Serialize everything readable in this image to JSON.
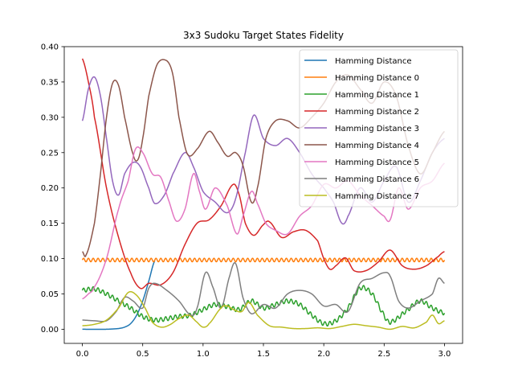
{
  "chart_data": {
    "type": "line",
    "title": "3x3 Sudoku Target States Fidelity",
    "xlabel": "",
    "ylabel": "",
    "xlim": [
      -0.15,
      3.15
    ],
    "ylim": [
      -0.02,
      0.4
    ],
    "xticks": [
      0.0,
      0.5,
      1.0,
      1.5,
      2.0,
      2.5,
      3.0
    ],
    "xtick_labels": [
      "0.0",
      "0.5",
      "1.0",
      "1.5",
      "2.0",
      "2.5",
      "3.0"
    ],
    "yticks": [
      0.0,
      0.05,
      0.1,
      0.15,
      0.2,
      0.25,
      0.3,
      0.35,
      0.4
    ],
    "ytick_labels": [
      "0.00",
      "0.05",
      "0.10",
      "0.15",
      "0.20",
      "0.25",
      "0.30",
      "0.35",
      "0.40"
    ],
    "grid": false,
    "legend_position": "top-right",
    "series": [
      {
        "name": "Hamming Distance",
        "color": "#1f77b4",
        "oscillation": null,
        "points": [
          [
            0.0,
            0.0
          ],
          [
            0.2,
            0.0
          ],
          [
            0.3,
            0.001
          ],
          [
            0.35,
            0.003
          ],
          [
            0.4,
            0.008
          ],
          [
            0.45,
            0.02
          ],
          [
            0.5,
            0.04
          ],
          [
            0.55,
            0.068
          ],
          [
            0.6,
            0.097
          ]
        ]
      },
      {
        "name": "Hamming Distance 0",
        "color": "#ff7f0e",
        "oscillation": {
          "amplitude": 0.0025,
          "period": 0.04
        },
        "points": [
          [
            0.0,
            0.098
          ],
          [
            1.5,
            0.098
          ],
          [
            3.0,
            0.098
          ]
        ]
      },
      {
        "name": "Hamming Distance 1",
        "color": "#2ca02c",
        "oscillation": {
          "amplitude": 0.003,
          "period": 0.04
        },
        "points": [
          [
            0.0,
            0.055
          ],
          [
            0.1,
            0.057
          ],
          [
            0.2,
            0.05
          ],
          [
            0.3,
            0.04
          ],
          [
            0.4,
            0.03
          ],
          [
            0.5,
            0.018
          ],
          [
            0.6,
            0.013
          ],
          [
            0.7,
            0.015
          ],
          [
            0.8,
            0.018
          ],
          [
            0.9,
            0.02
          ],
          [
            1.0,
            0.028
          ],
          [
            1.1,
            0.035
          ],
          [
            1.2,
            0.032
          ],
          [
            1.3,
            0.028
          ],
          [
            1.4,
            0.04
          ],
          [
            1.5,
            0.03
          ],
          [
            1.6,
            0.035
          ],
          [
            1.7,
            0.04
          ],
          [
            1.8,
            0.035
          ],
          [
            1.9,
            0.02
          ],
          [
            2.0,
            0.008
          ],
          [
            2.1,
            0.012
          ],
          [
            2.2,
            0.03
          ],
          [
            2.3,
            0.058
          ],
          [
            2.4,
            0.05
          ],
          [
            2.5,
            0.02
          ],
          [
            2.55,
            0.01
          ],
          [
            2.7,
            0.028
          ],
          [
            2.8,
            0.04
          ],
          [
            2.9,
            0.03
          ],
          [
            3.0,
            0.023
          ]
        ]
      },
      {
        "name": "Hamming Distance 2",
        "color": "#d62728",
        "oscillation": null,
        "points": [
          [
            0.0,
            0.383
          ],
          [
            0.05,
            0.35
          ],
          [
            0.1,
            0.3
          ],
          [
            0.2,
            0.2
          ],
          [
            0.3,
            0.13
          ],
          [
            0.4,
            0.08
          ],
          [
            0.48,
            0.058
          ],
          [
            0.55,
            0.065
          ],
          [
            0.65,
            0.063
          ],
          [
            0.75,
            0.08
          ],
          [
            0.85,
            0.12
          ],
          [
            0.95,
            0.15
          ],
          [
            1.05,
            0.155
          ],
          [
            1.15,
            0.175
          ],
          [
            1.25,
            0.205
          ],
          [
            1.3,
            0.19
          ],
          [
            1.35,
            0.15
          ],
          [
            1.42,
            0.133
          ],
          [
            1.5,
            0.148
          ],
          [
            1.55,
            0.152
          ],
          [
            1.65,
            0.13
          ],
          [
            1.75,
            0.138
          ],
          [
            1.85,
            0.14
          ],
          [
            1.95,
            0.125
          ],
          [
            2.0,
            0.1
          ],
          [
            2.05,
            0.085
          ],
          [
            2.1,
            0.09
          ],
          [
            2.18,
            0.101
          ],
          [
            2.25,
            0.083
          ],
          [
            2.35,
            0.083
          ],
          [
            2.45,
            0.095
          ],
          [
            2.55,
            0.112
          ],
          [
            2.65,
            0.09
          ],
          [
            2.75,
            0.085
          ],
          [
            2.85,
            0.09
          ],
          [
            2.95,
            0.103
          ],
          [
            3.0,
            0.11
          ]
        ]
      },
      {
        "name": "Hamming Distance 3",
        "color": "#9467bd",
        "oscillation": null,
        "points": [
          [
            0.0,
            0.295
          ],
          [
            0.05,
            0.34
          ],
          [
            0.1,
            0.357
          ],
          [
            0.15,
            0.33
          ],
          [
            0.2,
            0.27
          ],
          [
            0.25,
            0.21
          ],
          [
            0.3,
            0.19
          ],
          [
            0.35,
            0.22
          ],
          [
            0.42,
            0.236
          ],
          [
            0.48,
            0.23
          ],
          [
            0.55,
            0.2
          ],
          [
            0.6,
            0.178
          ],
          [
            0.68,
            0.19
          ],
          [
            0.75,
            0.22
          ],
          [
            0.85,
            0.25
          ],
          [
            0.92,
            0.23
          ],
          [
            1.0,
            0.195
          ],
          [
            1.1,
            0.18
          ],
          [
            1.2,
            0.165
          ],
          [
            1.27,
            0.185
          ],
          [
            1.35,
            0.25
          ],
          [
            1.42,
            0.303
          ],
          [
            1.5,
            0.27
          ],
          [
            1.6,
            0.26
          ],
          [
            1.7,
            0.27
          ],
          [
            1.8,
            0.25
          ],
          [
            1.9,
            0.22
          ],
          [
            2.0,
            0.2
          ],
          [
            2.08,
            0.18
          ],
          [
            2.15,
            0.15
          ],
          [
            2.2,
            0.16
          ],
          [
            2.3,
            0.2
          ],
          [
            2.4,
            0.18
          ],
          [
            2.5,
            0.21
          ],
          [
            2.6,
            0.23
          ],
          [
            2.7,
            0.18
          ],
          [
            2.8,
            0.21
          ],
          [
            2.9,
            0.25
          ],
          [
            3.0,
            0.27
          ]
        ]
      },
      {
        "name": "Hamming Distance 4",
        "color": "#8c564b",
        "oscillation": null,
        "points": [
          [
            0.0,
            0.11
          ],
          [
            0.03,
            0.105
          ],
          [
            0.1,
            0.15
          ],
          [
            0.15,
            0.22
          ],
          [
            0.2,
            0.3
          ],
          [
            0.25,
            0.348
          ],
          [
            0.3,
            0.345
          ],
          [
            0.35,
            0.3
          ],
          [
            0.42,
            0.248
          ],
          [
            0.46,
            0.24
          ],
          [
            0.5,
            0.27
          ],
          [
            0.55,
            0.33
          ],
          [
            0.62,
            0.375
          ],
          [
            0.7,
            0.38
          ],
          [
            0.75,
            0.36
          ],
          [
            0.8,
            0.3
          ],
          [
            0.87,
            0.248
          ],
          [
            0.95,
            0.255
          ],
          [
            1.05,
            0.28
          ],
          [
            1.12,
            0.265
          ],
          [
            1.2,
            0.245
          ],
          [
            1.27,
            0.25
          ],
          [
            1.33,
            0.232
          ],
          [
            1.4,
            0.18
          ],
          [
            1.45,
            0.2
          ],
          [
            1.52,
            0.27
          ],
          [
            1.6,
            0.295
          ],
          [
            1.7,
            0.295
          ],
          [
            1.8,
            0.285
          ],
          [
            1.9,
            0.3
          ],
          [
            2.0,
            0.32
          ],
          [
            2.1,
            0.35
          ],
          [
            2.2,
            0.36
          ],
          [
            2.3,
            0.34
          ],
          [
            2.4,
            0.32
          ],
          [
            2.5,
            0.35
          ],
          [
            2.6,
            0.33
          ],
          [
            2.7,
            0.26
          ],
          [
            2.8,
            0.22
          ],
          [
            2.9,
            0.25
          ],
          [
            3.0,
            0.28
          ]
        ]
      },
      {
        "name": "Hamming Distance 5",
        "color": "#e377c2",
        "oscillation": null,
        "points": [
          [
            0.0,
            0.043
          ],
          [
            0.05,
            0.05
          ],
          [
            0.1,
            0.06
          ],
          [
            0.2,
            0.1
          ],
          [
            0.3,
            0.17
          ],
          [
            0.38,
            0.21
          ],
          [
            0.44,
            0.255
          ],
          [
            0.5,
            0.25
          ],
          [
            0.58,
            0.22
          ],
          [
            0.65,
            0.215
          ],
          [
            0.72,
            0.18
          ],
          [
            0.78,
            0.153
          ],
          [
            0.85,
            0.17
          ],
          [
            0.92,
            0.22
          ],
          [
            0.97,
            0.195
          ],
          [
            1.02,
            0.17
          ],
          [
            1.1,
            0.2
          ],
          [
            1.2,
            0.175
          ],
          [
            1.28,
            0.135
          ],
          [
            1.33,
            0.16
          ],
          [
            1.4,
            0.195
          ],
          [
            1.45,
            0.178
          ],
          [
            1.52,
            0.15
          ],
          [
            1.6,
            0.14
          ],
          [
            1.7,
            0.135
          ],
          [
            1.8,
            0.16
          ],
          [
            1.9,
            0.175
          ],
          [
            2.0,
            0.205
          ],
          [
            2.1,
            0.2
          ],
          [
            2.2,
            0.21
          ],
          [
            2.3,
            0.19
          ],
          [
            2.4,
            0.175
          ],
          [
            2.5,
            0.16
          ],
          [
            2.55,
            0.155
          ],
          [
            2.62,
            0.2
          ],
          [
            2.7,
            0.17
          ],
          [
            2.8,
            0.2
          ],
          [
            2.9,
            0.21
          ],
          [
            3.0,
            0.235
          ]
        ]
      },
      {
        "name": "Hamming Distance 6",
        "color": "#7f7f7f",
        "oscillation": null,
        "points": [
          [
            0.0,
            0.013
          ],
          [
            0.1,
            0.012
          ],
          [
            0.2,
            0.012
          ],
          [
            0.28,
            0.025
          ],
          [
            0.35,
            0.045
          ],
          [
            0.42,
            0.04
          ],
          [
            0.5,
            0.03
          ],
          [
            0.55,
            0.058
          ],
          [
            0.6,
            0.065
          ],
          [
            0.7,
            0.055
          ],
          [
            0.8,
            0.04
          ],
          [
            0.9,
            0.02
          ],
          [
            0.95,
            0.03
          ],
          [
            1.02,
            0.08
          ],
          [
            1.08,
            0.06
          ],
          [
            1.15,
            0.03
          ],
          [
            1.22,
            0.075
          ],
          [
            1.27,
            0.093
          ],
          [
            1.33,
            0.045
          ],
          [
            1.4,
            0.022
          ],
          [
            1.5,
            0.035
          ],
          [
            1.6,
            0.03
          ],
          [
            1.7,
            0.05
          ],
          [
            1.8,
            0.055
          ],
          [
            1.9,
            0.05
          ],
          [
            2.0,
            0.033
          ],
          [
            2.1,
            0.035
          ],
          [
            2.2,
            0.025
          ],
          [
            2.3,
            0.065
          ],
          [
            2.4,
            0.072
          ],
          [
            2.5,
            0.08
          ],
          [
            2.55,
            0.075
          ],
          [
            2.62,
            0.04
          ],
          [
            2.7,
            0.03
          ],
          [
            2.8,
            0.04
          ],
          [
            2.9,
            0.05
          ],
          [
            2.95,
            0.072
          ],
          [
            3.0,
            0.065
          ]
        ]
      },
      {
        "name": "Hamming Distance 7",
        "color": "#bcbd22",
        "oscillation": null,
        "points": [
          [
            0.0,
            0.005
          ],
          [
            0.1,
            0.007
          ],
          [
            0.2,
            0.013
          ],
          [
            0.3,
            0.03
          ],
          [
            0.38,
            0.052
          ],
          [
            0.45,
            0.048
          ],
          [
            0.52,
            0.03
          ],
          [
            0.58,
            0.01
          ],
          [
            0.65,
            0.003
          ],
          [
            0.72,
            0.006
          ],
          [
            0.8,
            0.015
          ],
          [
            0.88,
            0.02
          ],
          [
            0.95,
            0.01
          ],
          [
            1.0,
            0.003
          ],
          [
            1.05,
            0.008
          ],
          [
            1.15,
            0.03
          ],
          [
            1.2,
            0.033
          ],
          [
            1.25,
            0.028
          ],
          [
            1.32,
            0.025
          ],
          [
            1.38,
            0.038
          ],
          [
            1.45,
            0.02
          ],
          [
            1.55,
            0.005
          ],
          [
            1.65,
            0.003
          ],
          [
            1.75,
            0.001
          ],
          [
            1.85,
            0.001
          ],
          [
            1.95,
            0.002
          ],
          [
            2.05,
            0.001
          ],
          [
            2.15,
            0.004
          ],
          [
            2.25,
            0.007
          ],
          [
            2.35,
            0.005
          ],
          [
            2.45,
            0.003
          ],
          [
            2.55,
            0.0
          ],
          [
            2.65,
            0.004
          ],
          [
            2.75,
            0.002
          ],
          [
            2.85,
            0.01
          ],
          [
            2.9,
            0.02
          ],
          [
            2.95,
            0.008
          ],
          [
            3.0,
            0.012
          ]
        ]
      }
    ]
  }
}
